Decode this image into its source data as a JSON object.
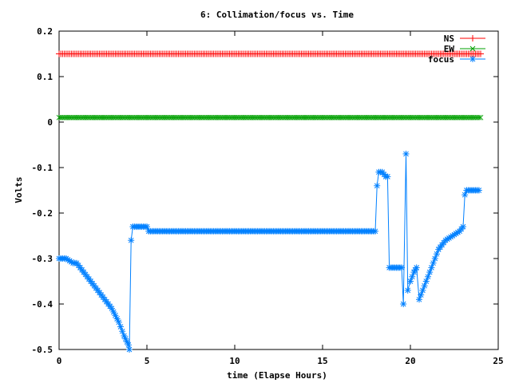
{
  "chart_data": {
    "type": "line",
    "title": "6: Collimation/focus vs. Time",
    "xlabel": "time (Elapse Hours)",
    "ylabel": "Volts",
    "xlim": [
      0,
      25
    ],
    "ylim": [
      -0.5,
      0.2
    ],
    "xticks": [
      0,
      5,
      10,
      15,
      20,
      25
    ],
    "yticks": [
      -0.5,
      -0.4,
      -0.3,
      -0.2,
      -0.1,
      0,
      0.1,
      0.2
    ],
    "ytick_labels": [
      "-0.5",
      "-0.4",
      "-0.3",
      "-0.2",
      "-0.1",
      "0",
      "0.1",
      "0.2"
    ],
    "grid": false,
    "legend_position": "top-right",
    "series": [
      {
        "name": "NS",
        "color": "#ff0000",
        "marker": "plus",
        "x": [
          0,
          24
        ],
        "y": [
          0.15,
          0.15
        ]
      },
      {
        "name": "EW",
        "color": "#00a000",
        "marker": "cross",
        "x": [
          0,
          24
        ],
        "y": [
          0.01,
          0.01
        ]
      },
      {
        "name": "focus",
        "color": "#0080ff",
        "marker": "star",
        "x": [
          0,
          0.4,
          0.8,
          1.0,
          1.4,
          1.8,
          2.2,
          2.6,
          3.0,
          3.4,
          3.7,
          3.95,
          4.0,
          4.1,
          4.2,
          5.0,
          5.1,
          10,
          15,
          18.0,
          18.1,
          18.2,
          18.4,
          18.6,
          18.7,
          18.8,
          19.0,
          19.2,
          19.5,
          19.6,
          19.75,
          19.85,
          20.0,
          20.2,
          20.35,
          20.5,
          20.7,
          21.0,
          21.3,
          21.6,
          22.0,
          22.4,
          22.8,
          23.0,
          23.1,
          23.2,
          23.5,
          23.9
        ],
        "y": [
          -0.3,
          -0.3,
          -0.31,
          -0.31,
          -0.33,
          -0.35,
          -0.37,
          -0.39,
          -0.41,
          -0.44,
          -0.47,
          -0.49,
          -0.5,
          -0.26,
          -0.23,
          -0.23,
          -0.24,
          -0.24,
          -0.24,
          -0.24,
          -0.14,
          -0.11,
          -0.11,
          -0.12,
          -0.12,
          -0.32,
          -0.32,
          -0.32,
          -0.32,
          -0.4,
          -0.07,
          -0.37,
          -0.35,
          -0.33,
          -0.32,
          -0.39,
          -0.37,
          -0.34,
          -0.31,
          -0.28,
          -0.26,
          -0.25,
          -0.24,
          -0.23,
          -0.16,
          -0.15,
          -0.15,
          -0.15
        ]
      }
    ]
  }
}
